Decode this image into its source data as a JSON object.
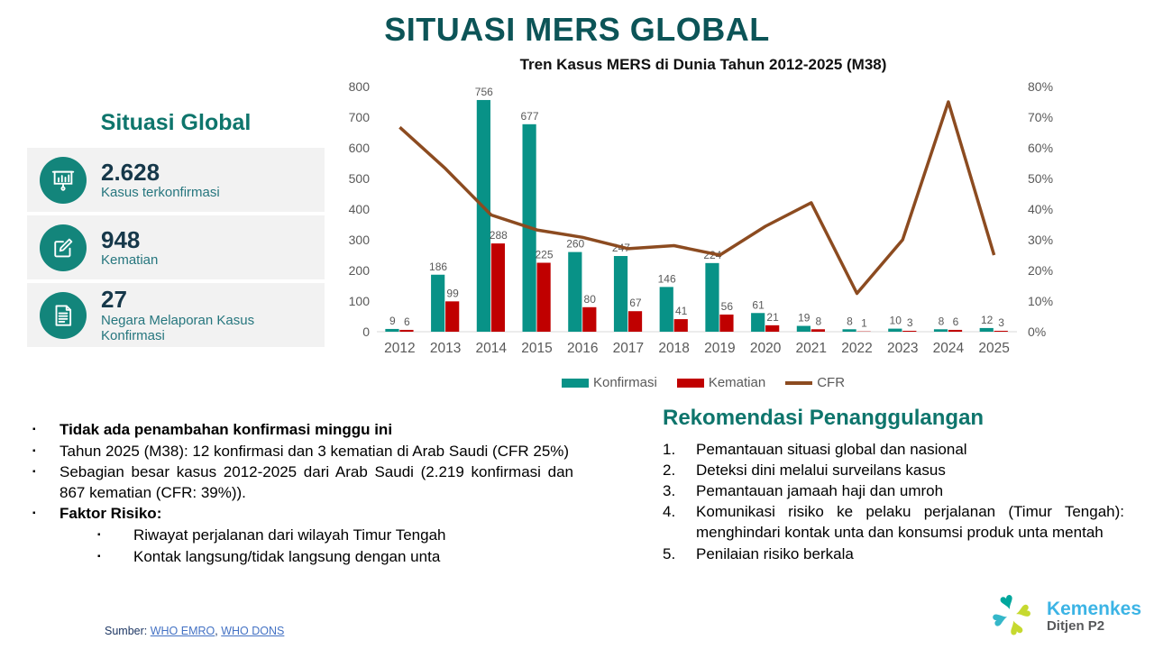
{
  "slide": {
    "title": "SITUASI MERS GLOBAL"
  },
  "sidebar": {
    "heading": "Situasi Global",
    "cards": [
      {
        "icon": "chart-presentation-icon",
        "value": "2.628",
        "label": "Kasus terkonfirmasi"
      },
      {
        "icon": "edit-icon",
        "value": "948",
        "label": "Kematian"
      },
      {
        "icon": "document-icon",
        "value": "27",
        "label": "Negara Melaporan Kasus Konfirmasi"
      }
    ]
  },
  "chart_data": {
    "type": "bar",
    "title": "Tren Kasus MERS di Dunia Tahun 2012-2025 (M38)",
    "categories": [
      "2012",
      "2013",
      "2014",
      "2015",
      "2016",
      "2017",
      "2018",
      "2019",
      "2020",
      "2021",
      "2022",
      "2023",
      "2024",
      "2025"
    ],
    "series": [
      {
        "name": "Konfirmasi",
        "type": "bar",
        "color": "#089287",
        "values": [
          9,
          186,
          756,
          677,
          260,
          247,
          146,
          224,
          61,
          19,
          8,
          10,
          8,
          12
        ]
      },
      {
        "name": "Kematian",
        "type": "bar",
        "color": "#C00000",
        "values": [
          6,
          99,
          288,
          225,
          80,
          67,
          41,
          56,
          21,
          8,
          1,
          3,
          6,
          3
        ]
      },
      {
        "name": "CFR",
        "type": "line",
        "color": "#8C4B20",
        "axis": "right",
        "values": [
          66.7,
          53.2,
          38.1,
          33.2,
          30.8,
          27.1,
          28.1,
          25.0,
          34.4,
          42.1,
          12.5,
          30.0,
          75.0,
          25.0
        ]
      }
    ],
    "y_left": {
      "min": 0,
      "max": 800,
      "step": 100
    },
    "y_right": {
      "min": 0,
      "max": 80,
      "step": 10,
      "format": "percent"
    },
    "grid": false,
    "legend_position": "bottom",
    "xlabel": "",
    "ylabel": ""
  },
  "bullets": {
    "items": [
      {
        "text": "Tidak ada penambahan konfirmasi minggu ini",
        "bold": true,
        "level": 1,
        "justify": false
      },
      {
        "text": "Tahun 2025 (M38): 12 konfirmasi dan 3 kematian di Arab Saudi (CFR 25%)",
        "bold": false,
        "level": 1,
        "justify": false
      },
      {
        "text": "Sebagian besar kasus 2012-2025 dari Arab Saudi (2.219 konfirmasi dan 867 kematian (CFR: 39%)).",
        "bold": false,
        "level": 1,
        "justify": true
      },
      {
        "text": "Faktor Risiko:",
        "bold": true,
        "level": 1,
        "justify": false
      },
      {
        "text": "Riwayat perjalanan dari wilayah Timur Tengah",
        "bold": false,
        "level": 2,
        "justify": false
      },
      {
        "text": "Kontak langsung/tidak langsung dengan unta",
        "bold": false,
        "level": 2,
        "justify": false
      }
    ]
  },
  "recommendations": {
    "heading": "Rekomendasi Penanggulangan",
    "items": [
      "Pemantauan situasi global dan nasional",
      "Deteksi dini melalui surveilans kasus",
      "Pemantauan jamaah haji dan umroh",
      "Komunikasi risiko ke pelaku perjalanan (Timur Tengah): menghindari kontak unta dan konsumsi produk unta mentah",
      "Penilaian risiko berkala"
    ]
  },
  "footer": {
    "source_label": "Sumber:",
    "links": [
      {
        "text": "WHO EMRO"
      },
      {
        "text": "WHO DONS"
      }
    ],
    "separator": ","
  },
  "logo": {
    "name": "Kemenkes",
    "subtitle": "Ditjen P2"
  },
  "colors": {
    "title_teal": "#0C5457",
    "heading_teal": "#0E756C",
    "card_bg": "#F2F2F2",
    "icon_circle": "#13857B",
    "card_value": "#16384A",
    "card_label": "#26767E",
    "bar_confirmed": "#089287",
    "bar_deaths": "#C00000",
    "cfr_line": "#8C4B20",
    "axis_text": "#595959",
    "link_blue": "#4472C4",
    "logo_cyan": "#3CB4E5",
    "logo_gray": "#58595B"
  }
}
